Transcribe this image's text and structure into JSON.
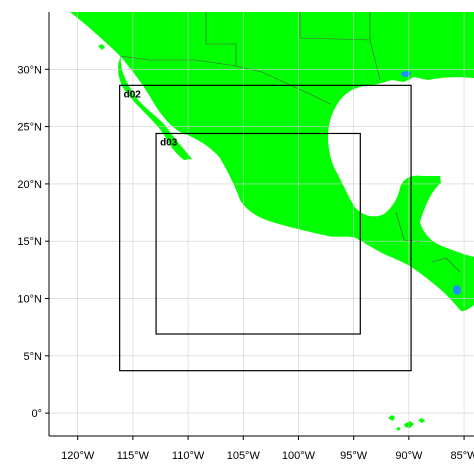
{
  "map": {
    "colors": {
      "land": "#00ff00",
      "water": "#ffffff",
      "lake": "#1e90ff",
      "grid": "#cfcfcf",
      "border": "#555555",
      "frame": "#000000"
    },
    "lon_range": [
      -122.6,
      -84.1
    ],
    "lat_range": [
      -2.0,
      35.0
    ],
    "lon_ticks": [
      {
        "value": -120,
        "label": "120°W"
      },
      {
        "value": -115,
        "label": "115°W"
      },
      {
        "value": -110,
        "label": "110°W"
      },
      {
        "value": -105,
        "label": "105°W"
      },
      {
        "value": -100,
        "label": "100°W"
      },
      {
        "value": -95,
        "label": "95°W"
      },
      {
        "value": -90,
        "label": "90°W"
      },
      {
        "value": -85,
        "label": "85°W"
      }
    ],
    "lat_ticks": [
      {
        "value": 0,
        "label": "0°"
      },
      {
        "value": 5,
        "label": "5°N"
      },
      {
        "value": 10,
        "label": "10°N"
      },
      {
        "value": 15,
        "label": "15°N"
      },
      {
        "value": 20,
        "label": "20°N"
      },
      {
        "value": 25,
        "label": "25°N"
      },
      {
        "value": 30,
        "label": "30°N"
      }
    ],
    "domains": [
      {
        "name": "d02",
        "lon_min": -116.2,
        "lon_max": -89.8,
        "lat_min": 3.7,
        "lat_max": 28.6
      },
      {
        "name": "d03",
        "lon_min": -112.9,
        "lon_max": -94.4,
        "lat_min": 6.9,
        "lat_max": 24.4
      }
    ]
  }
}
